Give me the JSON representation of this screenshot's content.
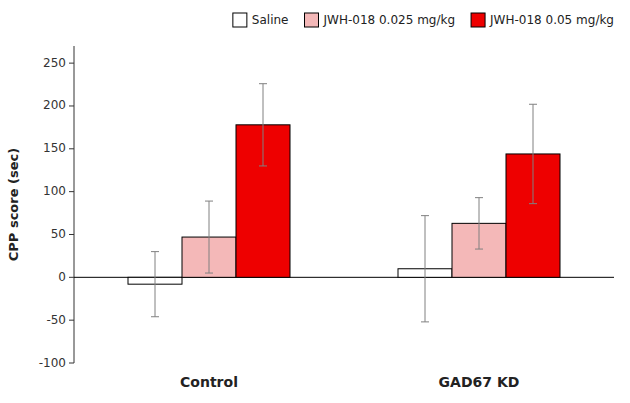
{
  "chart_data": {
    "type": "bar",
    "categories": [
      "Control",
      "GAD67 KD"
    ],
    "series": [
      {
        "name": "Saline",
        "color": "#ffffff",
        "values": [
          -8,
          10
        ],
        "errors": [
          38,
          62
        ]
      },
      {
        "name": "JWH-018 0.025 mg/kg",
        "color": "#f4b8b8",
        "values": [
          47,
          63
        ],
        "errors": [
          42,
          30
        ]
      },
      {
        "name": "JWH-018 0.05 mg/kg",
        "color": "#ee0000",
        "values": [
          178,
          144
        ],
        "errors": [
          48,
          58
        ]
      }
    ],
    "ylabel": "CPP score (sec)",
    "ylim": [
      -100,
      270
    ],
    "yticks": [
      -100,
      -50,
      0,
      50,
      100,
      150,
      200,
      250
    ],
    "grid": false,
    "legend": "upper right"
  }
}
